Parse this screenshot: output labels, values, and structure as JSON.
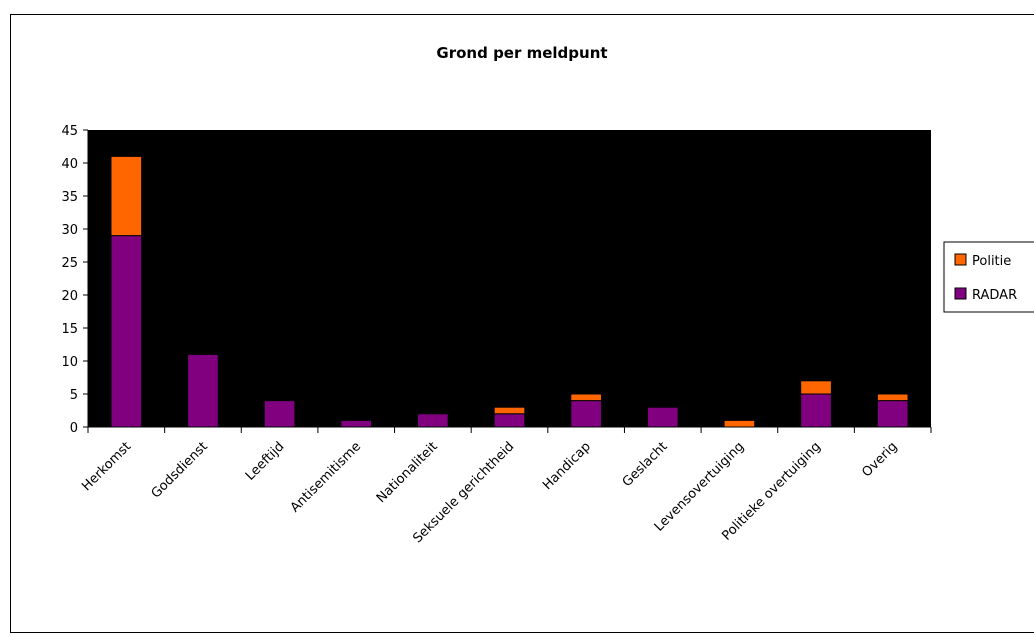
{
  "chart_data": {
    "type": "bar",
    "stacked": true,
    "title": "Grond per meldpunt",
    "xlabel": "",
    "ylabel": "",
    "ylim": [
      0,
      45
    ],
    "yticks": [
      "0",
      "5",
      "10",
      "15",
      "20",
      "25",
      "30",
      "35",
      "40",
      "45"
    ],
    "grid": false,
    "legend_position": "right",
    "plot_background": "#000000",
    "categories": [
      "Herkomst",
      "Godsdienst",
      "Leeftijd",
      "Antisemitisme",
      "Nationaliteit",
      "Seksuele gerichtheid",
      "Handicap",
      "Geslacht",
      "Levensovertuiging",
      "Politieke overtuiging",
      "Overig"
    ],
    "series": [
      {
        "name": "RADAR",
        "color": "#800080",
        "values": [
          29,
          11,
          4,
          1,
          2,
          2,
          4,
          3,
          0,
          5,
          4
        ]
      },
      {
        "name": "Politie",
        "color": "#FF6600",
        "values": [
          12,
          0,
          0,
          0,
          0,
          1,
          1,
          0,
          1,
          2,
          1
        ]
      }
    ],
    "legend": [
      "Politie",
      "RADAR"
    ]
  }
}
